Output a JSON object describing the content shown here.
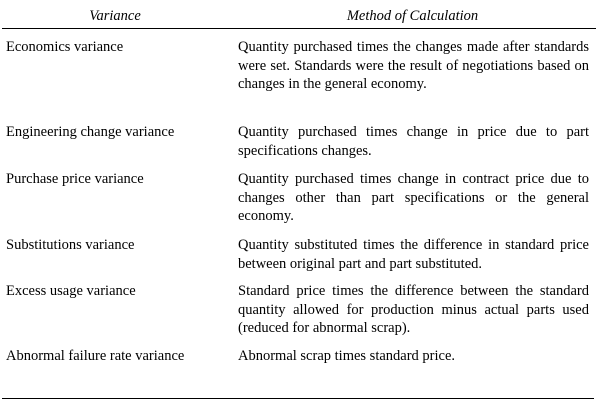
{
  "table": {
    "headers": [
      "Variance",
      "Method of Calculation"
    ],
    "rows": [
      {
        "variance": "Economics variance",
        "method": "Quantity purchased times the changes made after standards were set.  Standards were the result of negotiations based on changes in the general economy."
      },
      {
        "variance": "Engineering change variance",
        "method": "Quantity purchased times change in price due to part specifications changes."
      },
      {
        "variance": "Purchase price variance",
        "method": "Quantity purchased times change in contract price due to changes other than part specifications or the general economy."
      },
      {
        "variance": "Substitutions variance",
        "method": "Quantity substituted times the difference in standard price between original part and part substituted."
      },
      {
        "variance": "Excess usage variance",
        "method": "Standard price times the difference between the standard quantity allowed for production minus actual parts used (reduced for abnormal scrap)."
      },
      {
        "variance": "Abnormal failure rate variance",
        "method": "Abnormal scrap times standard price."
      }
    ]
  }
}
